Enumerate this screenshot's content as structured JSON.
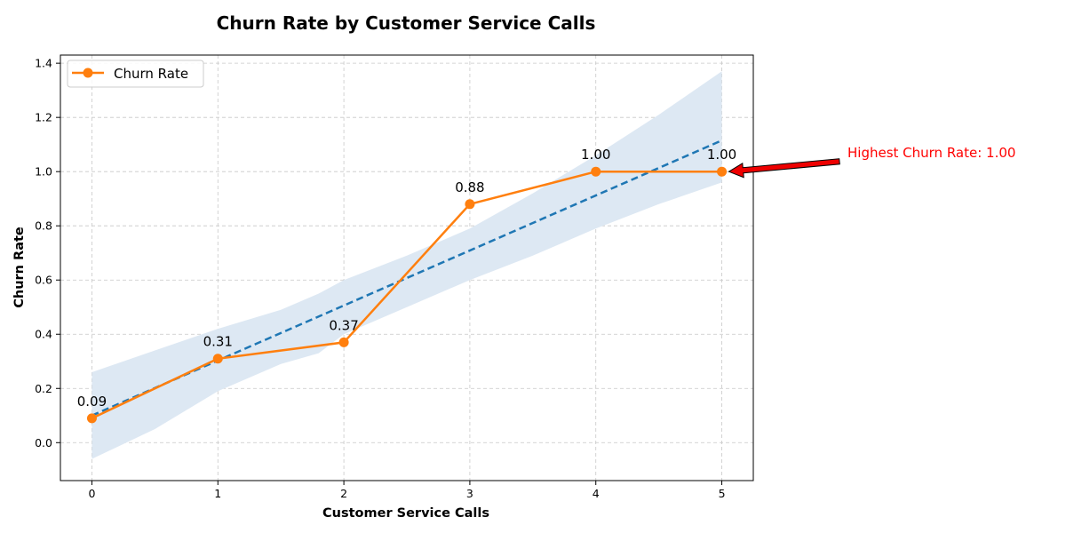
{
  "chart_data": {
    "type": "line",
    "title": "Churn Rate by Customer Service Calls",
    "xlabel": "Customer Service Calls",
    "ylabel": "Churn Rate",
    "xlim": [
      -0.25,
      5.25
    ],
    "ylim": [
      -0.14,
      1.43
    ],
    "x_ticks": [
      0,
      1,
      2,
      3,
      4,
      5
    ],
    "y_ticks": [
      0.0,
      0.2,
      0.4,
      0.6,
      0.8,
      1.0,
      1.2,
      1.4
    ],
    "x_tick_labels": [
      "0",
      "1",
      "2",
      "3",
      "4",
      "5"
    ],
    "y_tick_labels": [
      "0.0",
      "0.2",
      "0.4",
      "0.6",
      "0.8",
      "1.0",
      "1.2",
      "1.4"
    ],
    "grid": true,
    "legend_position": "top-left",
    "series": [
      {
        "name": "Churn Rate",
        "color": "#ff7f0e",
        "marker": "circle",
        "x": [
          0,
          1,
          2,
          3,
          4,
          5
        ],
        "values": [
          0.09,
          0.31,
          0.37,
          0.88,
          1.0,
          1.0
        ],
        "data_labels": [
          "0.09",
          "0.31",
          "0.37",
          "0.88",
          "1.00",
          "1.00"
        ]
      }
    ],
    "trend": {
      "color": "#1f77b4",
      "style": "dashed",
      "x": [
        0,
        5
      ],
      "values": [
        0.1,
        1.115
      ]
    },
    "confidence_band": {
      "color": "#dde8f3",
      "x": [
        0,
        0.5,
        1,
        1.5,
        1.8,
        2,
        2.5,
        3,
        3.5,
        4,
        4.5,
        5
      ],
      "upper": [
        0.26,
        0.34,
        0.42,
        0.49,
        0.55,
        0.6,
        0.69,
        0.79,
        0.92,
        1.06,
        1.21,
        1.37
      ],
      "lower": [
        -0.06,
        0.05,
        0.19,
        0.29,
        0.33,
        0.4,
        0.5,
        0.6,
        0.69,
        0.79,
        0.88,
        0.96
      ]
    },
    "annotation": {
      "text": "Highest Churn Rate: 1.00",
      "color": "#ff0000",
      "target_x": 5,
      "target_y": 1.0,
      "text_y": 1.07
    }
  }
}
